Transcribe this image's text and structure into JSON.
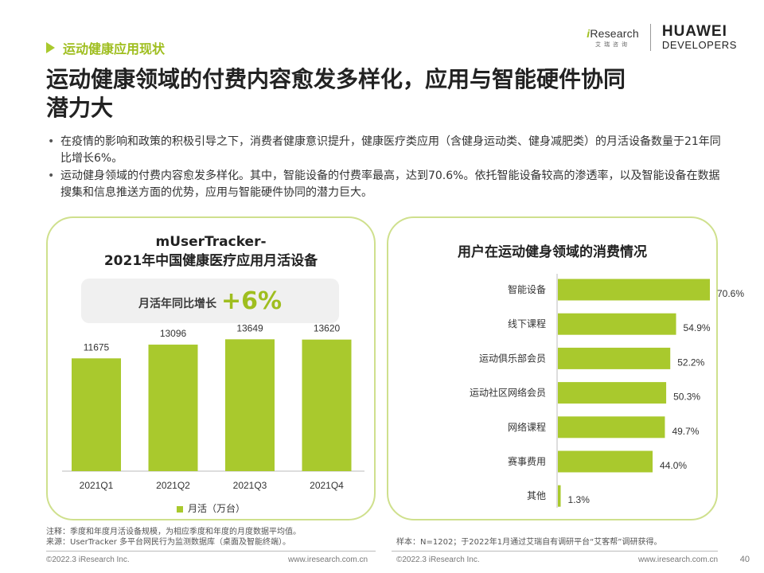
{
  "header": {
    "section": "运动健康应用现状",
    "title": "运动健康领域的付费内容愈发多样化，应用与智能硬件协同潜力大",
    "iresearch_prefix": "i",
    "iresearch_name": "Research",
    "iresearch_sub": "艾瑞咨询",
    "huawei_line1": "HUAWEI",
    "huawei_line2": "DEVELOPERS"
  },
  "bullets": [
    "在疫情的影响和政策的积极引导之下，消费者健康意识提升，健康医疗类应用（含健身运动类、健身减肥类）的月活设备数量于21年同比增长6%。",
    "运动健身领域的付费内容愈发多样化。其中，智能设备的付费率最高，达到70.6%。依托智能设备较高的渗透率，以及智能设备在数据搜集和信息推送方面的优势，应用与智能硬件协同的潜力巨大。"
  ],
  "left_panel": {
    "title_line1": "mUserTracker-",
    "title_line2": "2021年中国健康医疗应用月活设备",
    "growth_label": "月活年同比增长",
    "growth_value": "+6%",
    "legend": "月活（万台）"
  },
  "right_panel": {
    "title": "用户在运动健身领域的消费情况"
  },
  "footnotes": {
    "left_note": "注释：季度和年度月活设备规模，为相应季度和年度的月度数据平均值。",
    "left_source": "来源：UserTracker 多平台网民行为监测数据库（桌面及智能终端）。",
    "right_note": "样本：N=1202；于2022年1月通过艾瑞自有调研平台“艾客帮”调研获得。"
  },
  "footer": {
    "copyright_left": "©2022.3 iResearch Inc.",
    "url_left": "www.iresearch.com.cn",
    "copyright_right": "©2022.3 iResearch Inc.",
    "url_right": "www.iresearch.com.cn",
    "page": "40"
  },
  "colors": {
    "accent": "#a9c92d",
    "accent_text": "#9fbe1f",
    "panel_border": "#cfe08d"
  },
  "chart_data": [
    {
      "type": "bar",
      "title": "mUserTracker-2021年中国健康医疗应用月活设备",
      "categories": [
        "2021Q1",
        "2021Q2",
        "2021Q3",
        "2021Q4"
      ],
      "series": [
        {
          "name": "月活（万台）",
          "values": [
            11675,
            13096,
            13649,
            13620
          ]
        }
      ],
      "ylim": [
        0,
        14500
      ],
      "grid": false,
      "legend": "bottom"
    },
    {
      "type": "bar",
      "orientation": "horizontal",
      "title": "用户在运动健身领域的消费情况",
      "categories": [
        "智能设备",
        "线下课程",
        "运动俱乐部会员",
        "运动社区网络会员",
        "网络课程",
        "赛事费用",
        "其他"
      ],
      "values": [
        70.6,
        54.9,
        52.2,
        50.3,
        49.7,
        44.0,
        1.3
      ],
      "value_labels": [
        "70.6%",
        "54.9%",
        "52.2%",
        "50.3%",
        "49.7%",
        "44.0%",
        "1.3%"
      ],
      "unit": "%",
      "xlim": [
        0,
        100
      ],
      "grid": false
    }
  ]
}
